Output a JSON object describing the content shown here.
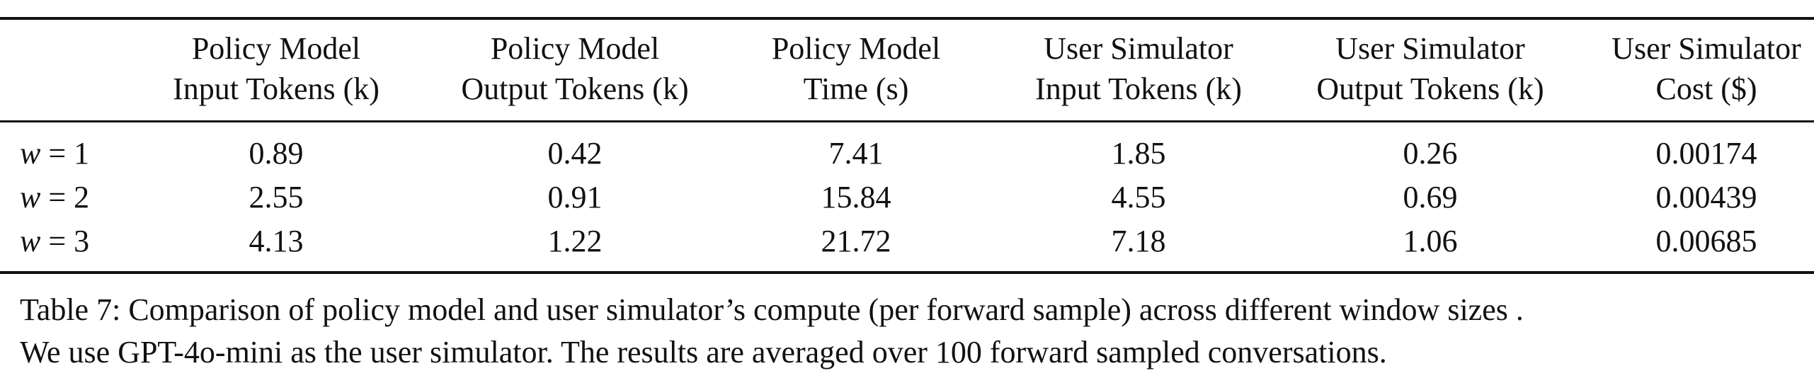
{
  "table": {
    "headers": [
      {
        "line1": "Policy Model",
        "line2": "Input Tokens (k)"
      },
      {
        "line1": "Policy Model",
        "line2": "Output Tokens (k)"
      },
      {
        "line1": "Policy Model",
        "line2": "Time (s)"
      },
      {
        "line1": "User Simulator",
        "line2": "Input Tokens (k)"
      },
      {
        "line1": "User Simulator",
        "line2": "Output Tokens (k)"
      },
      {
        "line1": "User Simulator",
        "line2": "Cost ($)"
      }
    ],
    "rows": [
      {
        "var": "w",
        "eq": " = 1",
        "cells": [
          "0.89",
          "0.42",
          "7.41",
          "1.85",
          "0.26",
          "0.00174"
        ]
      },
      {
        "var": "w",
        "eq": " = 2",
        "cells": [
          "2.55",
          "0.91",
          "15.84",
          "4.55",
          "0.69",
          "0.00439"
        ]
      },
      {
        "var": "w",
        "eq": " = 3",
        "cells": [
          "4.13",
          "1.22",
          "21.72",
          "7.18",
          "1.06",
          "0.00685"
        ]
      }
    ]
  },
  "caption": {
    "line1": "Table 7: Comparison of policy model and user simulator’s compute (per forward sample) across different window sizes .",
    "line2": "We use GPT-4o-mini as the user simulator. The results are averaged over 100 forward sampled conversations."
  }
}
